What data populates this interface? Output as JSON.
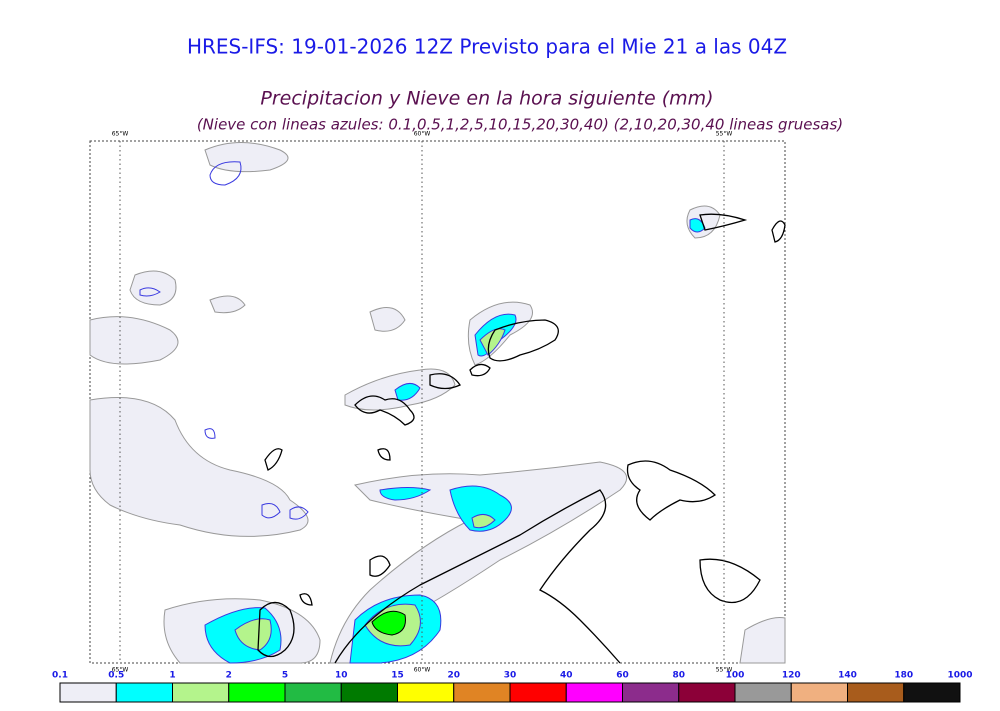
{
  "header": {
    "title": "HRES-IFS: 19-01-2026 12Z Previsto para el Mie 21 a las 04Z",
    "subtitle": "Precipitacion y Nieve en la hora siguiente (mm)",
    "note": "(Nieve con lineas azules: 0.1,0.5,1,2,5,10,15,20,30,40)  (2,10,20,30,40 lineas gruesas)"
  },
  "map": {
    "meridians": [
      "65°W",
      "60°W",
      "55°W"
    ]
  },
  "colorbar": {
    "levels": [
      0.1,
      0.5,
      1,
      2,
      5,
      10,
      15,
      20,
      30,
      40,
      60,
      80,
      100,
      120,
      140,
      180,
      1000
    ],
    "colors": [
      "#eeeef6",
      "#00ffff",
      "#b4f48c",
      "#00ff00",
      "#22bb44",
      "#007a00",
      "#ffff00",
      "#e08424",
      "#ff0000",
      "#ff00ff",
      "#8c2c8c",
      "#8c0038",
      "#999999",
      "#f0b080",
      "#a85c1c",
      "#111111"
    ]
  }
}
